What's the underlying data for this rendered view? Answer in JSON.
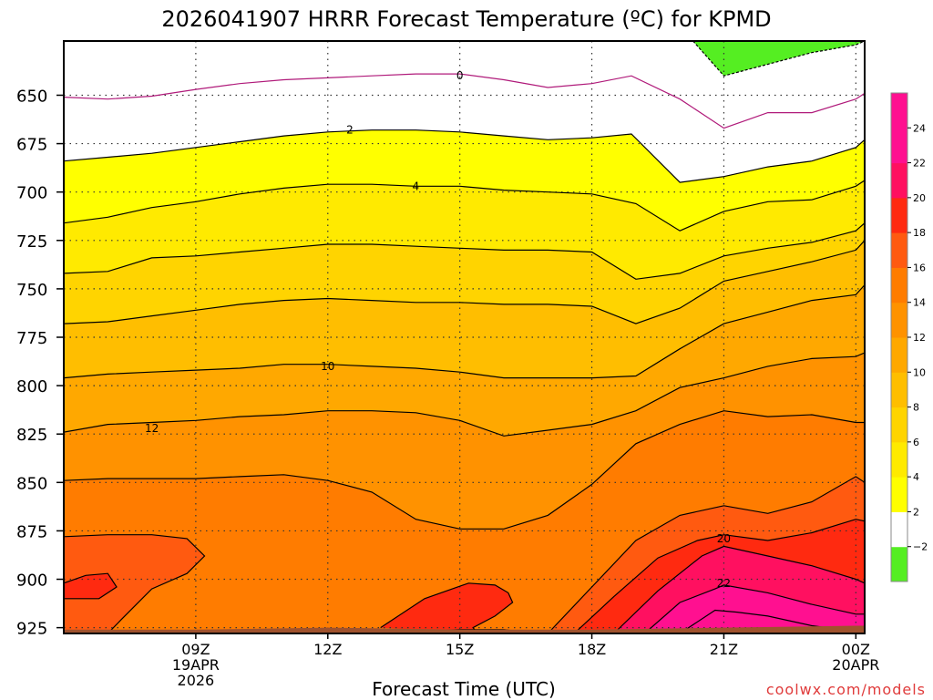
{
  "chart_data": {
    "type": "heatmap",
    "title": "2026041907 HRRR Forecast Temperature (ºC) for KPMD",
    "xlabel": "Forecast Time (UTC)",
    "ylabel": "",
    "credit": "coolwx.com/models",
    "y_axis": {
      "units": "hPa",
      "inverted": true,
      "range": [
        622,
        928
      ],
      "ticks": [
        650,
        675,
        700,
        725,
        750,
        775,
        800,
        825,
        850,
        875,
        900,
        925
      ]
    },
    "x_axis": {
      "range_hours": [
        6,
        24.2
      ],
      "ticks": [
        {
          "hour": 9,
          "label": "09Z",
          "date": "19APR",
          "year": "2026"
        },
        {
          "hour": 12,
          "label": "12Z",
          "date": "",
          "year": ""
        },
        {
          "hour": 15,
          "label": "15Z",
          "date": "",
          "year": ""
        },
        {
          "hour": 18,
          "label": "18Z",
          "date": "",
          "year": ""
        },
        {
          "hour": 21,
          "label": "21Z",
          "date": "",
          "year": ""
        },
        {
          "hour": 24,
          "label": "00Z",
          "date": "20APR",
          "year": ""
        }
      ]
    },
    "grid": true,
    "colorbar": {
      "placement": "right",
      "levels": [
        -2,
        2,
        4,
        6,
        8,
        10,
        12,
        14,
        16,
        18,
        20,
        22,
        24
      ],
      "labels": [
        "−2",
        "2",
        "4",
        "6",
        "8",
        "10",
        "12",
        "14",
        "16",
        "18",
        "20",
        "22",
        "24"
      ],
      "colors": [
        "#55ee22",
        "#ffffff",
        "#ffff00",
        "#ffea00",
        "#ffd400",
        "#ffbe00",
        "#ffa800",
        "#ff9200",
        "#ff7c00",
        "#ff5a10",
        "#ff2a10",
        "#ff1060",
        "#ff1090",
        "#ff1090"
      ]
    },
    "contours": [
      {
        "level": 0,
        "label": "0",
        "label_at": {
          "hour": 15,
          "p": 640
        },
        "color": "#b01a7a",
        "points": [
          [
            6,
            651
          ],
          [
            7,
            652
          ],
          [
            8,
            650.5
          ],
          [
            9,
            647
          ],
          [
            10,
            644
          ],
          [
            11,
            642
          ],
          [
            12,
            641
          ],
          [
            13,
            640
          ],
          [
            14,
            639
          ],
          [
            15,
            639
          ],
          [
            16,
            642
          ],
          [
            17,
            646
          ],
          [
            18,
            644
          ],
          [
            18.9,
            640
          ],
          [
            20,
            652
          ],
          [
            21,
            667
          ],
          [
            22,
            659
          ],
          [
            23,
            659
          ],
          [
            24,
            652
          ],
          [
            24.2,
            649
          ]
        ]
      },
      {
        "level": 2,
        "label": "2",
        "label_at": {
          "hour": 12.5,
          "p": 668
        },
        "color": "#000000",
        "points": [
          [
            6,
            684
          ],
          [
            7,
            682
          ],
          [
            8,
            680
          ],
          [
            9,
            677
          ],
          [
            10,
            674
          ],
          [
            11,
            671
          ],
          [
            12,
            669
          ],
          [
            13,
            668
          ],
          [
            14,
            668
          ],
          [
            15,
            669
          ],
          [
            16,
            671
          ],
          [
            17,
            673
          ],
          [
            18,
            672
          ],
          [
            18.9,
            670
          ],
          [
            20,
            695
          ],
          [
            21,
            692
          ],
          [
            22,
            687
          ],
          [
            23,
            684
          ],
          [
            24,
            677
          ],
          [
            24.2,
            673
          ]
        ]
      },
      {
        "level": 4,
        "label": "4",
        "label_at": {
          "hour": 14.0,
          "p": 697
        },
        "color": "#000000",
        "points": [
          [
            6,
            716
          ],
          [
            7,
            713
          ],
          [
            8,
            708
          ],
          [
            9,
            705
          ],
          [
            10,
            701
          ],
          [
            11,
            698
          ],
          [
            12,
            696
          ],
          [
            13,
            696
          ],
          [
            14,
            697
          ],
          [
            15,
            697
          ],
          [
            16,
            699
          ],
          [
            17,
            700
          ],
          [
            18,
            701
          ],
          [
            19,
            706
          ],
          [
            20,
            720
          ],
          [
            21,
            710
          ],
          [
            22,
            705
          ],
          [
            23,
            704
          ],
          [
            24,
            697
          ],
          [
            24.2,
            694
          ]
        ]
      },
      {
        "level": 6,
        "points": [
          [
            6,
            742
          ],
          [
            7,
            741
          ],
          [
            8,
            734
          ],
          [
            9,
            733
          ],
          [
            10,
            731
          ],
          [
            11,
            729
          ],
          [
            12,
            727
          ],
          [
            13,
            727
          ],
          [
            14,
            728
          ],
          [
            15,
            729
          ],
          [
            16,
            730
          ],
          [
            17,
            730
          ],
          [
            18,
            731
          ],
          [
            19,
            745
          ],
          [
            20,
            742
          ],
          [
            21,
            733
          ],
          [
            22,
            729
          ],
          [
            23,
            726
          ],
          [
            24,
            720
          ],
          [
            24.2,
            716
          ]
        ]
      },
      {
        "level": 8,
        "points": [
          [
            6,
            768
          ],
          [
            7,
            767
          ],
          [
            8,
            764
          ],
          [
            9,
            761
          ],
          [
            10,
            758
          ],
          [
            11,
            756
          ],
          [
            12,
            755
          ],
          [
            13,
            756
          ],
          [
            14,
            757
          ],
          [
            15,
            757
          ],
          [
            16,
            758
          ],
          [
            17,
            758
          ],
          [
            18,
            759
          ],
          [
            19,
            768
          ],
          [
            20,
            760
          ],
          [
            21,
            746
          ],
          [
            22,
            741
          ],
          [
            23,
            736
          ],
          [
            24,
            730
          ],
          [
            24.2,
            725
          ]
        ]
      },
      {
        "level": 10,
        "label": "10",
        "label_at": {
          "hour": 12,
          "p": 790
        },
        "color": "#000000",
        "points": [
          [
            6,
            796
          ],
          [
            7,
            794
          ],
          [
            8,
            793
          ],
          [
            9,
            792
          ],
          [
            10,
            791
          ],
          [
            11,
            789
          ],
          [
            12,
            789
          ],
          [
            13,
            790
          ],
          [
            14,
            791
          ],
          [
            15,
            793
          ],
          [
            16,
            796
          ],
          [
            17,
            796
          ],
          [
            18,
            796
          ],
          [
            19,
            795
          ],
          [
            20,
            781
          ],
          [
            21,
            768
          ],
          [
            22,
            762
          ],
          [
            23,
            756
          ],
          [
            24,
            753
          ],
          [
            24.2,
            748
          ]
        ]
      },
      {
        "level": 12,
        "label": "12",
        "label_at": {
          "hour": 8,
          "p": 822
        },
        "color": "#000000",
        "points": [
          [
            6,
            824
          ],
          [
            7,
            820
          ],
          [
            8,
            819
          ],
          [
            9,
            818
          ],
          [
            10,
            816
          ],
          [
            11,
            815
          ],
          [
            12,
            813
          ],
          [
            13,
            813
          ],
          [
            14,
            814
          ],
          [
            15,
            818
          ],
          [
            16,
            826
          ],
          [
            17,
            823
          ],
          [
            18,
            820
          ],
          [
            19,
            813
          ],
          [
            20,
            801
          ],
          [
            21,
            796
          ],
          [
            22,
            790
          ],
          [
            23,
            786
          ],
          [
            24,
            785
          ],
          [
            24.2,
            783
          ]
        ]
      },
      {
        "level": 14,
        "points": [
          [
            6,
            849
          ],
          [
            7,
            848
          ],
          [
            8,
            848
          ],
          [
            9,
            848
          ],
          [
            10,
            847
          ],
          [
            11,
            846
          ],
          [
            12,
            849
          ],
          [
            13,
            855
          ],
          [
            14,
            869
          ],
          [
            15,
            874
          ],
          [
            16,
            874
          ],
          [
            17,
            867
          ],
          [
            18,
            851
          ],
          [
            19,
            830
          ],
          [
            20,
            820
          ],
          [
            21,
            813
          ],
          [
            22,
            816
          ],
          [
            23,
            815
          ],
          [
            24,
            819
          ],
          [
            24.2,
            819
          ]
        ]
      },
      {
        "level": 16,
        "points": [
          [
            6,
            878
          ],
          [
            7,
            877
          ],
          [
            8,
            877
          ],
          [
            8.8,
            879
          ],
          [
            9.2,
            888
          ],
          [
            8.8,
            897
          ],
          [
            8.0,
            905
          ],
          [
            7.3,
            921
          ],
          [
            7.0,
            928
          ]
        ]
      },
      {
        "level": 16,
        "points": [
          [
            12.5,
            928
          ],
          [
            14,
            927
          ],
          [
            15,
            926
          ],
          [
            16,
            926
          ],
          [
            16.8,
            928
          ]
        ]
      },
      {
        "level": 16,
        "points": [
          [
            17,
            928
          ],
          [
            18,
            904
          ],
          [
            19,
            880
          ],
          [
            20,
            867
          ],
          [
            21,
            862
          ],
          [
            22,
            866
          ],
          [
            23,
            860
          ],
          [
            24,
            847
          ],
          [
            24.2,
            850
          ]
        ]
      },
      {
        "level": 18,
        "points": [
          [
            6,
            902
          ],
          [
            6.5,
            898
          ],
          [
            7.0,
            897
          ],
          [
            7.2,
            904
          ],
          [
            6.8,
            910
          ],
          [
            6,
            910
          ]
        ]
      },
      {
        "level": 18,
        "points": [
          [
            13.2,
            925
          ],
          [
            14.2,
            910
          ],
          [
            15.2,
            902
          ],
          [
            15.8,
            903
          ],
          [
            16.1,
            907
          ],
          [
            16.2,
            912
          ],
          [
            15.8,
            919
          ],
          [
            15.3,
            925
          ],
          [
            15.4,
            928
          ]
        ]
      },
      {
        "level": 18,
        "points": [
          [
            17.6,
            928
          ],
          [
            18.5,
            909
          ],
          [
            19.5,
            889
          ],
          [
            20.4,
            880
          ],
          [
            21,
            877
          ],
          [
            22,
            880
          ],
          [
            23,
            876
          ],
          [
            24,
            869
          ],
          [
            24.2,
            870
          ]
        ]
      },
      {
        "level": 20,
        "label": "20",
        "label_at": {
          "hour": 21,
          "p": 879
        },
        "color": "#000000",
        "points": [
          [
            18.5,
            928
          ],
          [
            19.5,
            906
          ],
          [
            20.5,
            888
          ],
          [
            21,
            883
          ],
          [
            22,
            888
          ],
          [
            23,
            893
          ],
          [
            24,
            900
          ],
          [
            24.2,
            902
          ]
        ]
      },
      {
        "level": 22,
        "label": "22",
        "label_at": {
          "hour": 21,
          "p": 902
        },
        "color": "#000000",
        "points": [
          [
            19.2,
            928
          ],
          [
            20,
            912
          ],
          [
            20.8,
            905
          ],
          [
            21,
            903
          ],
          [
            22,
            907
          ],
          [
            23,
            913
          ],
          [
            24,
            918
          ],
          [
            24.2,
            918
          ]
        ]
      },
      {
        "level": 24,
        "points": [
          [
            20.0,
            928
          ],
          [
            20.8,
            916
          ],
          [
            21.3,
            917
          ],
          [
            22,
            919
          ],
          [
            23,
            924
          ],
          [
            24,
            927
          ],
          [
            24.2,
            927
          ]
        ]
      },
      {
        "level": -2,
        "dashed": true,
        "color": "#000000",
        "points": [
          [
            20.3,
            622
          ],
          [
            21,
            640
          ],
          [
            22,
            634
          ],
          [
            23,
            628
          ],
          [
            24,
            624
          ],
          [
            24.2,
            622
          ]
        ]
      }
    ],
    "terrain": {
      "color": "#a0522d",
      "surface_p": [
        [
          6,
          926
        ],
        [
          9,
          926
        ],
        [
          12,
          925
        ],
        [
          15,
          926
        ],
        [
          18,
          926
        ],
        [
          21,
          925
        ],
        [
          24,
          924
        ],
        [
          24.2,
          924
        ]
      ]
    }
  }
}
